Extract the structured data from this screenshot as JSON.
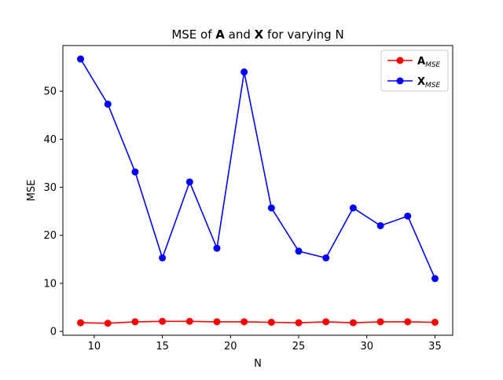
{
  "chart_data": {
    "type": "line",
    "title_parts": [
      {
        "text": "MSE of ",
        "bold": false
      },
      {
        "text": "A",
        "bold": true
      },
      {
        "text": " and ",
        "bold": false
      },
      {
        "text": "X",
        "bold": true
      },
      {
        "text": " for varying N",
        "bold": false
      }
    ],
    "xlabel": "N",
    "ylabel": "MSE",
    "x": [
      9,
      11,
      13,
      15,
      17,
      19,
      21,
      23,
      25,
      27,
      29,
      31,
      33,
      35
    ],
    "xlim": [
      7.7,
      36.3
    ],
    "ylim": [
      -0.8,
      59.5
    ],
    "xticks": [
      10,
      15,
      20,
      25,
      30,
      35
    ],
    "yticks": [
      0,
      10,
      20,
      30,
      40,
      50
    ],
    "grid": false,
    "legend_position": "top-right",
    "series": [
      {
        "name_main": "A",
        "name_sub": "MSE",
        "color": "#ff0000",
        "values": [
          1.8,
          1.7,
          2.0,
          2.1,
          2.1,
          2.0,
          2.0,
          1.9,
          1.8,
          2.0,
          1.8,
          2.0,
          2.0,
          1.9
        ]
      },
      {
        "name_main": "X",
        "name_sub": "MSE",
        "color": "#0000ff",
        "values": [
          56.7,
          47.3,
          33.2,
          15.3,
          31.1,
          17.3,
          54.0,
          25.7,
          16.7,
          15.3,
          25.7,
          22.0,
          24.0,
          11.0
        ]
      }
    ]
  }
}
